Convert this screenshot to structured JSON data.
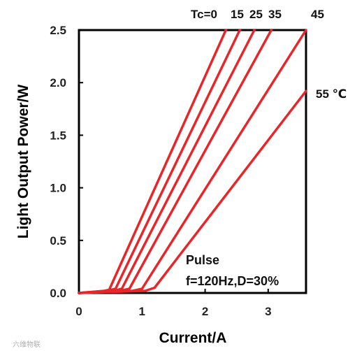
{
  "chart_data": {
    "type": "line",
    "xlabel": "Current/A",
    "ylabel": "Light Output Power/W",
    "xlim": [
      0,
      3.6
    ],
    "ylim": [
      0,
      2.5
    ],
    "x_ticks": [
      "0",
      "1",
      "2",
      "3"
    ],
    "y_ticks": [
      "0.0",
      "0.5",
      "1.0",
      "1.5",
      "2.0",
      "2.5"
    ],
    "grid": false,
    "line_color": "#e8262a",
    "series_prefix": "Tc=",
    "series": [
      {
        "name": "0",
        "label": "Tc=0",
        "points": [
          [
            0,
            0
          ],
          [
            0.4,
            0.02
          ],
          [
            0.48,
            0.03
          ],
          [
            2.33,
            2.5
          ]
        ]
      },
      {
        "name": "15",
        "label": "15",
        "points": [
          [
            0,
            0
          ],
          [
            0.45,
            0.02
          ],
          [
            0.58,
            0.04
          ],
          [
            2.55,
            2.5
          ]
        ]
      },
      {
        "name": "25",
        "label": "25",
        "points": [
          [
            0,
            0
          ],
          [
            0.55,
            0.02
          ],
          [
            0.68,
            0.04
          ],
          [
            2.78,
            2.5
          ]
        ]
      },
      {
        "name": "35",
        "label": "35",
        "points": [
          [
            0,
            0
          ],
          [
            0.65,
            0.02
          ],
          [
            0.8,
            0.04
          ],
          [
            3.05,
            2.5
          ]
        ]
      },
      {
        "name": "45",
        "label": "45",
        "points": [
          [
            0,
            0
          ],
          [
            0.85,
            0.02
          ],
          [
            1.0,
            0.04
          ],
          [
            3.6,
            2.5
          ]
        ]
      },
      {
        "name": "55",
        "label": "55 ℃",
        "points": [
          [
            0,
            0
          ],
          [
            1.05,
            0.02
          ],
          [
            1.2,
            0.05
          ],
          [
            3.6,
            1.92
          ]
        ]
      }
    ],
    "annotations": [
      "Pulse",
      "f=120Hz,D=30%"
    ]
  },
  "watermark": "六维物联"
}
